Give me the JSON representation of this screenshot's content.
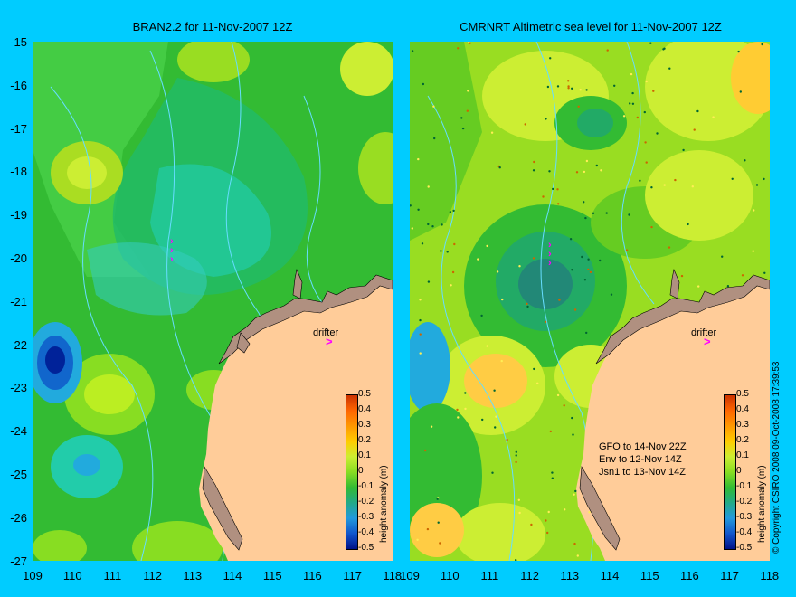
{
  "titles": {
    "left": "BRAN2.2 for 11-Nov-2007 12Z",
    "right": "CMRNRT Altimetric sea level  for 11-Nov-2007 12Z"
  },
  "axes": {
    "y_ticks": [
      "-15",
      "-16",
      "-17",
      "-18",
      "-19",
      "-20",
      "-21",
      "-22",
      "-23",
      "-24",
      "-25",
      "-26",
      "-27"
    ],
    "x_ticks": [
      "109",
      "110",
      "111",
      "112",
      "113",
      "114",
      "115",
      "116",
      "117",
      "118"
    ]
  },
  "colorbar": {
    "title": "height anomaly (m)",
    "labels": [
      "0.5",
      "0.4",
      "0.3",
      "0.2",
      "0.1",
      "0",
      "-0.1",
      "-0.2",
      "-0.3",
      "-0.4",
      "-0.5"
    ]
  },
  "drifter": {
    "label": "drifter",
    "marker": ">"
  },
  "legend_notes": [
    "GFO to 14-Nov 22Z",
    "Env to 12-Nov 14Z",
    "Jsn1 to 13-Nov 14Z"
  ],
  "copyright": "© Copyright CSIRO 2008   09-Oct-2008 17:39:53",
  "colors": {
    "background": "#00ccff",
    "land": "#ffcc99",
    "contour": "#66ddff",
    "drifter": "#ff00ff"
  }
}
